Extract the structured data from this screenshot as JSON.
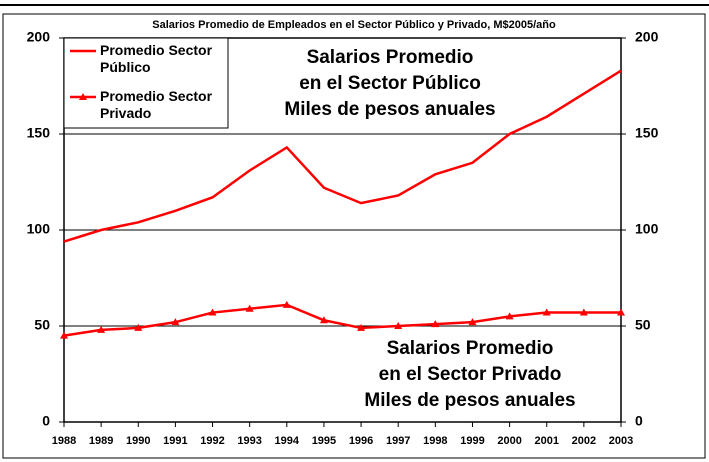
{
  "chart_data": {
    "type": "line",
    "title": "Salarios Promedio de Empleados en el Sector Público y Privado, M$2005/año",
    "categories": [
      "1988",
      "1989",
      "1990",
      "1991",
      "1992",
      "1993",
      "1994",
      "1995",
      "1996",
      "1997",
      "1998",
      "1999",
      "2000",
      "2001",
      "2002",
      "2003"
    ],
    "series": [
      {
        "name": "Promedio Sector Público",
        "color": "#ff0000",
        "marker": "none",
        "values": [
          94,
          100,
          104,
          110,
          117,
          131,
          143,
          122,
          114,
          118,
          129,
          135,
          150,
          159,
          171,
          183
        ]
      },
      {
        "name": "Promedio Sector Privado",
        "color": "#ff0000",
        "marker": "triangle",
        "values": [
          45,
          48,
          49,
          52,
          57,
          59,
          61,
          53,
          49,
          50,
          51,
          52,
          55,
          57,
          57,
          57
        ]
      }
    ],
    "ylim": [
      0,
      200
    ],
    "yticks": [
      0,
      50,
      100,
      150,
      200
    ],
    "y2lim": [
      0,
      200
    ],
    "y2ticks": [
      0,
      50,
      100,
      150,
      200
    ],
    "grid": true,
    "legend": "upper left",
    "annotations": [
      "Salarios Promedio\nen el Sector Público\nMiles de pesos anuales",
      "Salarios Promedio\nen el Sector Privado\nMiles de pesos anuales"
    ]
  }
}
